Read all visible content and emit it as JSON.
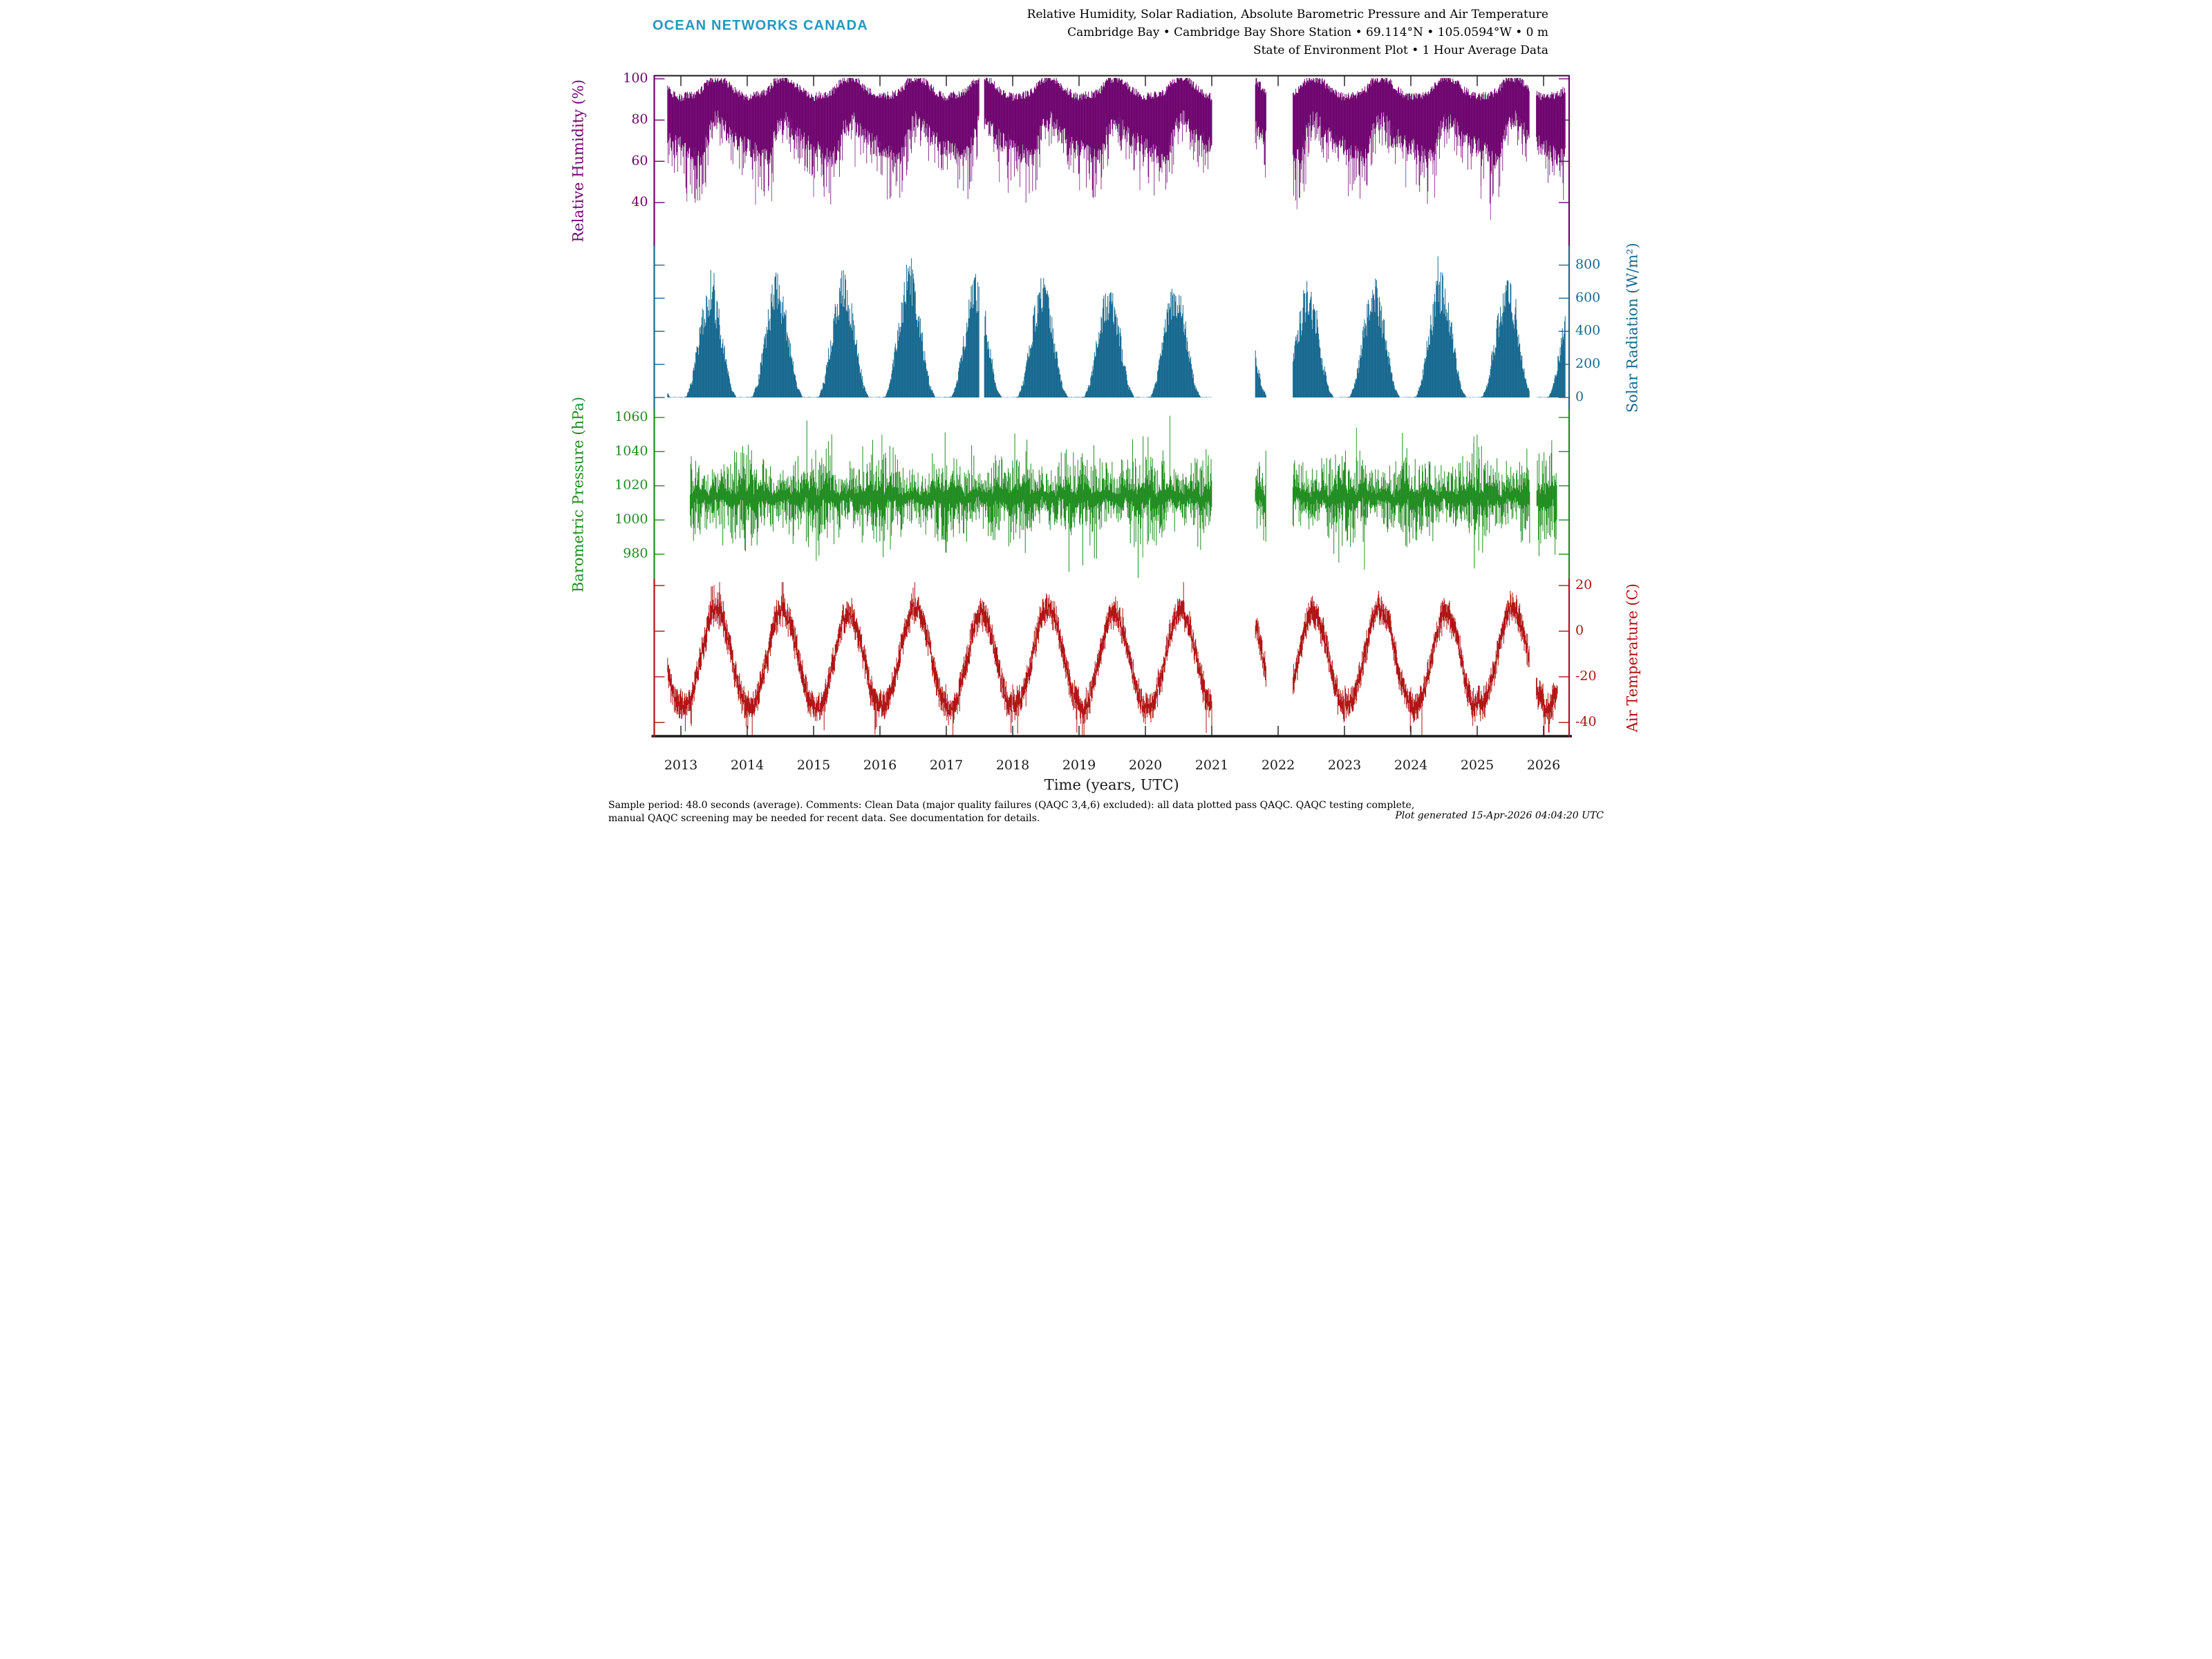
{
  "header": {
    "logo": "OCEAN NETWORKS CANADA",
    "logo_color": "#2298c0",
    "title_line1": "Relative Humidity, Solar Radiation, Absolute Barometric Pressure and Air Temperature",
    "title_line2": "Cambridge Bay • Cambridge Bay Shore Station • 69.114°N • 105.0594°W • 0 m",
    "title_line3": "State of Environment Plot • 1 Hour Average Data"
  },
  "footer": {
    "note_line1": "Sample period: 48.0 seconds (average). Comments: Clean Data (major quality failures (QAQC 3,4,6) excluded): all data plotted pass QAQC. QAQC testing complete,",
    "note_line2": "manual QAQC screening may be needed for recent data. See documentation for details.",
    "generated": "Plot generated 15-Apr-2026 04:04:20 UTC"
  },
  "chart_data": {
    "type": "scatter",
    "description": "Four vertically stacked hourly time-series panels sharing one time axis (2012-2026), Cambridge Bay Shore Station",
    "x_axis": {
      "label": "Time (years, UTC)",
      "tick_years": [
        2013,
        2014,
        2015,
        2016,
        2017,
        2018,
        2019,
        2020,
        2021,
        2022,
        2023,
        2024,
        2025,
        2026
      ],
      "xlim": [
        2012.6,
        2026.39
      ]
    },
    "panels": [
      {
        "name": "relative-humidity",
        "ylabel": "Relative Humidity (%)",
        "label_side": "left",
        "color": "#6e046e",
        "yticks": [
          100,
          80,
          60,
          40
        ],
        "ylim": [
          18.9,
          101.5
        ],
        "data_start": 2012.8,
        "data_end": 2026.33,
        "gaps": [
          [
            2021.0,
            2021.65
          ],
          [
            2021.82,
            2022.22
          ],
          [
            2017.5,
            2017.57
          ],
          [
            2025.79,
            2025.89
          ]
        ],
        "model": {
          "kind": "band",
          "monthly_hi": [
            91,
            92,
            92,
            93,
            95,
            99,
            100,
            100,
            99,
            96,
            94,
            92
          ],
          "monthly_lo": [
            67,
            65,
            63,
            61,
            63,
            73,
            79,
            80,
            76,
            72,
            70,
            68
          ],
          "monthly_extreme_lo": [
            50,
            46,
            40,
            38,
            42,
            55,
            66,
            68,
            62,
            58,
            56,
            52
          ],
          "cap": 100.4
        }
      },
      {
        "name": "solar-radiation",
        "ylabel": "Solar Radiation (W/m²)",
        "label_side": "right",
        "color": "#17698f",
        "yticks": [
          800,
          600,
          400,
          200,
          0
        ],
        "ylim": [
          -73,
          915
        ],
        "data_start": 2012.8,
        "data_end": 2026.33,
        "gaps": [
          [
            2021.0,
            2021.65
          ],
          [
            2021.82,
            2022.22
          ],
          [
            2017.5,
            2017.57
          ],
          [
            2025.79,
            2025.89
          ]
        ],
        "model": {
          "kind": "solar",
          "monthly_daily_peak": [
            0,
            6,
            110,
            330,
            540,
            710,
            665,
            500,
            270,
            75,
            2,
            0
          ],
          "year_peak_scale": {
            "2012": 0.95,
            "2013": 0.98,
            "2014": 1.0,
            "2015": 1.04,
            "2016": 1.08,
            "2017": 1.0,
            "2018": 0.96,
            "2019": 0.92,
            "2020": 0.98,
            "2021": 1.0,
            "2022": 0.92,
            "2023": 0.96,
            "2024": 1.02,
            "2025": 0.98,
            "2026": 0.95
          },
          "max": 905
        }
      },
      {
        "name": "barometric-pressure",
        "ylabel": "Barometric Pressure (hPa)",
        "label_side": "left",
        "color": "#1f8c1f",
        "yticks": [
          1060,
          1040,
          1020,
          1000,
          980
        ],
        "ylim": [
          965.1,
          1064.6
        ],
        "data_start": 2013.14,
        "data_end": 2026.2,
        "gaps": [
          [
            2021.0,
            2021.65
          ],
          [
            2021.82,
            2022.22
          ],
          [
            2025.79,
            2025.89
          ]
        ],
        "model": {
          "kind": "pressure",
          "mean": 1013.5,
          "monthly_variance": [
            1.25,
            1.25,
            1.15,
            1.0,
            0.85,
            0.7,
            0.65,
            0.7,
            0.9,
            1.05,
            1.15,
            1.25
          ],
          "clip": [
            966,
            1063
          ],
          "extreme_highs": [
            {
              "t": 2020.37,
              "value": 1061
            },
            {
              "t": 2023.18,
              "value": 1054
            },
            {
              "t": 2016.03,
              "value": 1050
            },
            {
              "t": 2024.95,
              "value": 1049
            }
          ],
          "extreme_lows": [
            {
              "t": 2023.3,
              "value": 971
            },
            {
              "t": 2015.04,
              "value": 976
            },
            {
              "t": 2019.96,
              "value": 978
            },
            {
              "t": 2017.0,
              "value": 981
            }
          ]
        }
      },
      {
        "name": "air-temperature",
        "ylabel": "Air Temperature (C)",
        "label_side": "right",
        "color": "#b01212",
        "yticks": [
          20,
          0,
          -20,
          -40
        ],
        "ylim": [
          -46,
          22.6
        ],
        "data_start": 2012.8,
        "data_end": 2026.21,
        "gaps": [
          [
            2021.0,
            2021.65
          ],
          [
            2021.82,
            2022.22
          ],
          [
            2025.79,
            2025.89
          ]
        ],
        "model": {
          "kind": "temperature",
          "monthly_mean": [
            -32.5,
            -33.5,
            -28,
            -19,
            -7.5,
            3.5,
            9.5,
            7.5,
            1.5,
            -8.5,
            -21,
            -29.5
          ],
          "clip": [
            -45.5,
            21.5
          ]
        }
      }
    ]
  }
}
